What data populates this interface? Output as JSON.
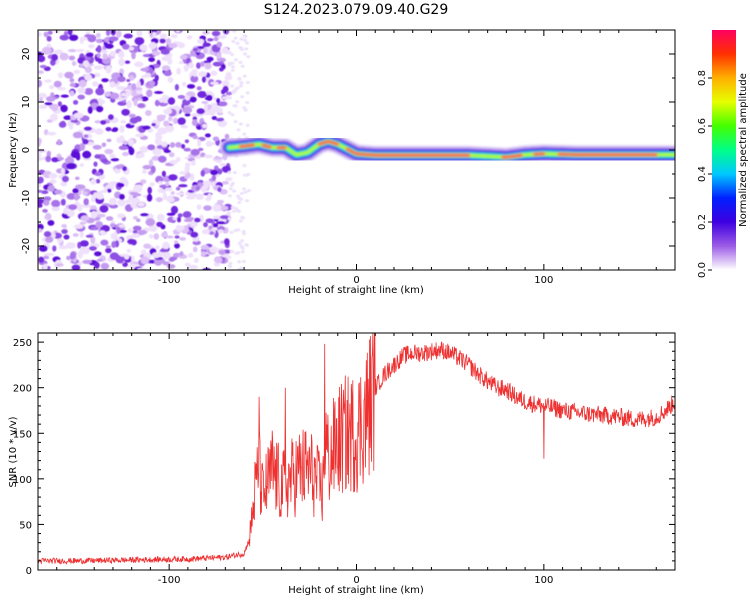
{
  "figure": {
    "title": "S124.2023.079.09.40.G29"
  },
  "chart_data": [
    {
      "type": "heatmap",
      "title": "S124.2023.079.09.40.G29",
      "xlabel": "Height of straight line (km)",
      "ylabel": "Frequency (Hz)",
      "xlim": [
        -170,
        170
      ],
      "ylim": [
        -25,
        25
      ],
      "x_ticks": [
        -100,
        0,
        100
      ],
      "y_ticks": [
        -20,
        -10,
        0,
        10,
        20
      ],
      "grid": false,
      "noise_region_x": [
        -170,
        -68
      ],
      "ridge": {
        "x": [
          -68,
          -60,
          -52,
          -45,
          -38,
          -32,
          -26,
          -20,
          -15,
          -10,
          -5,
          0,
          10,
          30,
          60,
          80,
          90,
          100,
          120,
          150,
          170
        ],
        "frequency": [
          0.5,
          0.8,
          1.2,
          0.5,
          0.5,
          -1.0,
          -0.5,
          1.2,
          1.8,
          1.2,
          0.2,
          -0.8,
          -1.1,
          -1.1,
          -1.1,
          -1.5,
          -1.0,
          -0.8,
          -1.0,
          -1.0,
          -1.0
        ]
      },
      "colorbar": {
        "label": "Normalized spectral amplitude",
        "range": [
          0,
          1
        ],
        "ticks": [
          0.0,
          0.2,
          0.4,
          0.6,
          0.8
        ],
        "tick_labels": [
          "0.0",
          "0.2",
          "0.4",
          "0.6",
          "0.8"
        ],
        "colormap": [
          "#ffffff",
          "#9c5ce6",
          "#3e00e0",
          "#0020ff",
          "#00c8ff",
          "#00ff88",
          "#44ff00",
          "#e6ff00",
          "#ffb000",
          "#ff3000",
          "#ff0060"
        ]
      }
    },
    {
      "type": "line",
      "xlabel": "Height of straight line (km)",
      "ylabel": "SNR (10 * v/v)",
      "xlim": [
        -170,
        170
      ],
      "ylim": [
        0,
        260
      ],
      "x_ticks": [
        -100,
        0,
        100
      ],
      "y_ticks": [
        0,
        50,
        100,
        150,
        200,
        250
      ],
      "grid": false,
      "color": "#ee3030",
      "series": [
        {
          "x": [
            -170,
            -150,
            -120,
            -90,
            -70,
            -60,
            -57,
            -54,
            -52,
            -50,
            -45,
            -40,
            -35,
            -30,
            -25,
            -18,
            -17,
            -15,
            -10,
            -5,
            0,
            5,
            10,
            15,
            20,
            25,
            30,
            35,
            40,
            45,
            50,
            55,
            60,
            65,
            70,
            75,
            80,
            85,
            90,
            95,
            100,
            105,
            110,
            120,
            130,
            140,
            150,
            160,
            165,
            170
          ],
          "y": [
            10,
            10,
            11,
            12,
            14,
            18,
            35,
            90,
            110,
            80,
            110,
            90,
            100,
            110,
            110,
            85,
            150,
            120,
            140,
            150,
            150,
            170,
            200,
            215,
            225,
            235,
            238,
            238,
            240,
            242,
            238,
            232,
            225,
            215,
            207,
            200,
            198,
            190,
            185,
            182,
            180,
            178,
            175,
            172,
            170,
            168,
            165,
            168,
            175,
            185
          ]
        }
      ],
      "spikes": [
        {
          "x": -52,
          "y": 190
        },
        {
          "x": -38,
          "y": 200
        },
        {
          "x": -17,
          "y": 248
        },
        {
          "x": 100,
          "y": 122
        }
      ]
    }
  ],
  "labels": {
    "top_xlabel": "Height of straight line (km)",
    "top_ylabel": "Frequency (Hz)",
    "bottom_xlabel": "Height of straight line (km)",
    "bottom_ylabel": "SNR (10 * v/v)",
    "colorbar_label": "Normalized spectral amplitude"
  }
}
